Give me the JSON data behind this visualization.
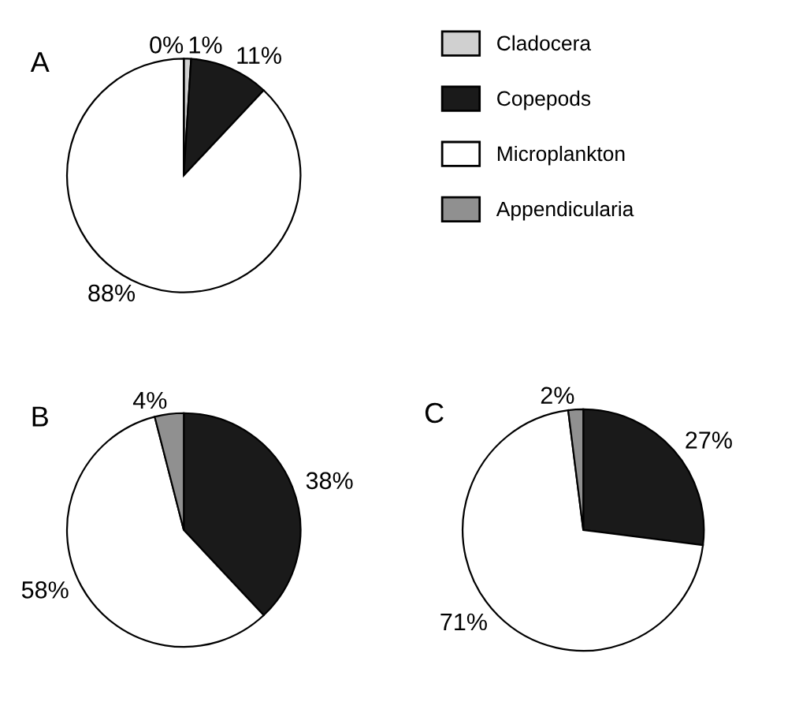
{
  "chart_data": [
    {
      "type": "pie",
      "title": "A",
      "categories": [
        "Cladocera",
        "Copepods",
        "Microplankton",
        "Appendicularia"
      ],
      "values": [
        1,
        11,
        88,
        0
      ],
      "value_labels": [
        "1%",
        "11%",
        "88%",
        "0%"
      ],
      "colors": [
        "#d0d0d0",
        "#1a1a1a",
        "#ffffff",
        "#909090"
      ],
      "legend": "right"
    },
    {
      "type": "pie",
      "title": "B",
      "categories": [
        null,
        null,
        null
      ],
      "values": [
        38,
        58,
        4
      ],
      "value_labels": [
        "38%",
        "58%",
        "4%"
      ],
      "colors": [
        "#1a1a1a",
        "#ffffff",
        "#909090"
      ]
    },
    {
      "type": "pie",
      "title": "C",
      "categories": [
        null,
        null,
        null
      ],
      "values": [
        27,
        71,
        2
      ],
      "value_labels": [
        "27%",
        "71%",
        "2%"
      ],
      "colors": [
        "#1a1a1a",
        "#ffffff",
        "#909090"
      ]
    }
  ]
}
